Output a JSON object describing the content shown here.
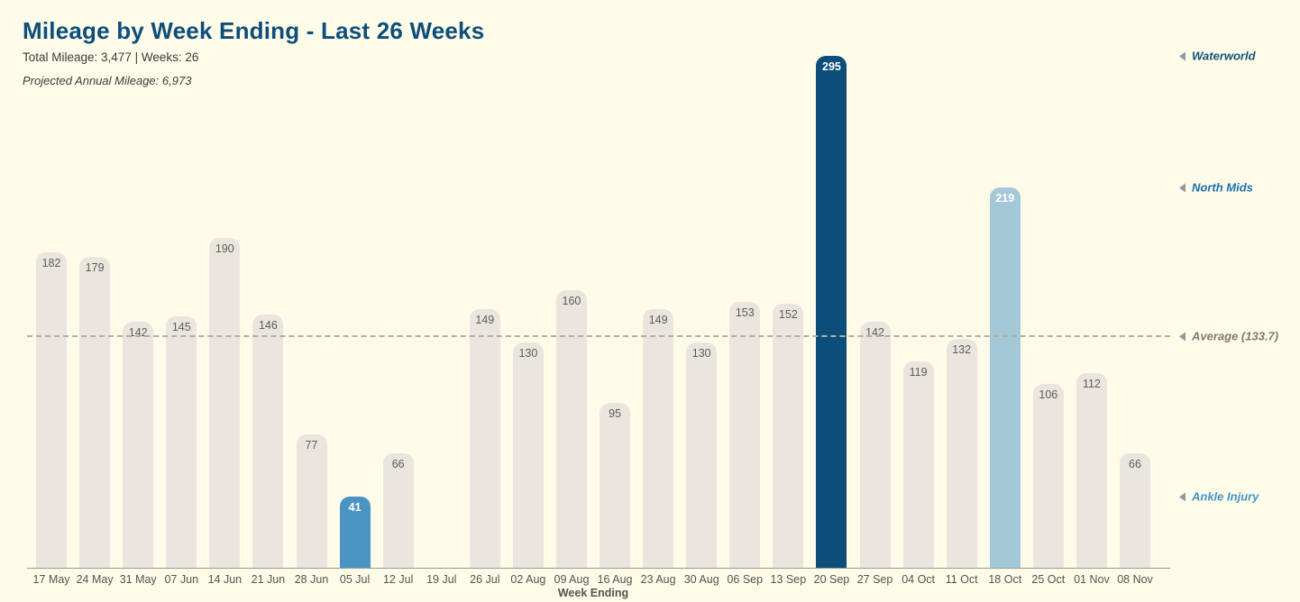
{
  "header": {
    "title": "Mileage by Week Ending - Last 26 Weeks",
    "subtitle": "Total Mileage: 3,477 | Weeks: 26",
    "projection": "Projected Annual Mileage: 6,973"
  },
  "colors": {
    "background": "#fdfce9",
    "title": "#0e4d7c",
    "bar_default": "#e8e6df",
    "bar_label_default": "#5d5c55",
    "bar_label_highlight": "#ffffff",
    "axis_line": "#9a9991",
    "average_line": "#b2b0a3",
    "tick_text": "#55544e",
    "annotation_marker": "#8d9aa6"
  },
  "chart_data": {
    "type": "bar",
    "title": "Mileage by Week Ending - Last 26 Weeks",
    "xlabel": "Week Ending",
    "ylabel": "",
    "ylim": [
      0,
      305
    ],
    "grid": false,
    "legend": false,
    "categories": [
      "17 May",
      "24 May",
      "31 May",
      "07 Jun",
      "14 Jun",
      "21 Jun",
      "28 Jun",
      "05 Jul",
      "12 Jul",
      "19 Jul",
      "26 Jul",
      "02 Aug",
      "09 Aug",
      "16 Aug",
      "23 Aug",
      "30 Aug",
      "06 Sep",
      "13 Sep",
      "20 Sep",
      "27 Sep",
      "04 Oct",
      "11 Oct",
      "18 Oct",
      "25 Oct",
      "01 Nov",
      "08 Nov"
    ],
    "values": [
      182,
      179,
      142,
      145,
      190,
      146,
      77,
      41,
      66,
      0,
      149,
      130,
      160,
      95,
      149,
      130,
      153,
      152,
      295,
      142,
      119,
      132,
      219,
      106,
      112,
      66
    ],
    "total_mileage": 3477,
    "weeks": 26,
    "projected_annual_mileage": 6973,
    "average": 133.7,
    "highlighted_bars": [
      {
        "category": "05 Jul",
        "color": "#4a94c4",
        "annotation": "Ankle Injury"
      },
      {
        "category": "20 Sep",
        "color": "#0d4d79",
        "annotation": "Waterworld"
      },
      {
        "category": "18 Oct",
        "color": "#a5c8d8",
        "annotation": "North Mids"
      }
    ],
    "annotations": [
      {
        "label": "Waterworld",
        "at_value": 295,
        "color": "#14507d"
      },
      {
        "label": "North Mids",
        "at_value": 219,
        "color": "#1d6fad"
      },
      {
        "label": "Average (133.7)",
        "at_value": 133.7,
        "color": "#7d7b70"
      },
      {
        "label": "Ankle Injury",
        "at_value": 41,
        "color": "#4494c6"
      }
    ]
  }
}
